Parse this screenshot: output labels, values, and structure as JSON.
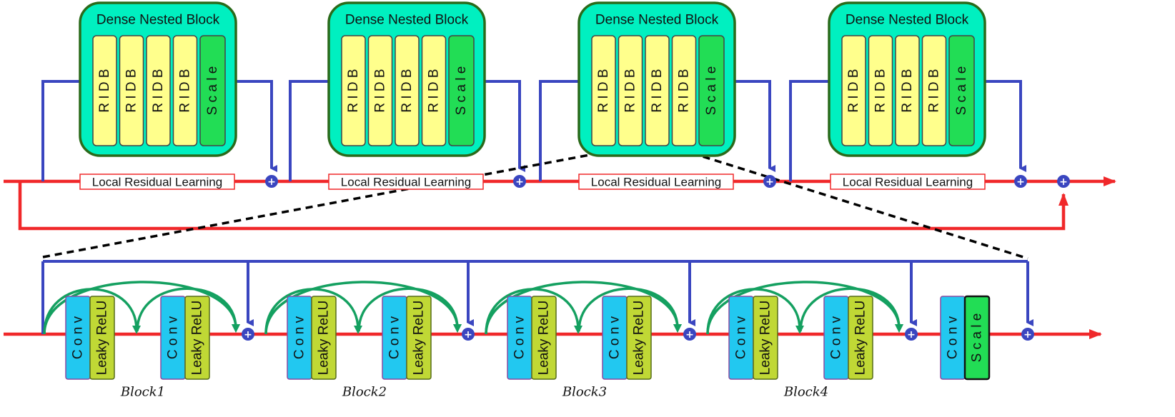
{
  "dense_block_title": "Dense Nested Block",
  "ridb_label": "R I D B",
  "scale_label": "S c a l e",
  "local_residual_label": "Local Residual Learning",
  "conv_label": "C o n v",
  "leaky_label": "Leaky ReLU",
  "plus_symbol": "+",
  "block_labels": [
    "Block1",
    "Block2",
    "Block3",
    "Block4"
  ],
  "colors": {
    "teal": "#00f0c0",
    "dark_green_border": "#2a6a1a",
    "ridb_yellow": "#ffff8c",
    "scale_green": "#22dd55",
    "blue_line": "#3a46c0",
    "red_line": "#f0282a",
    "green_arc": "#14a060",
    "conv_blue": "#22c8f0",
    "leaky_lime": "#c0d835",
    "conv_border": "#8a4aa0"
  }
}
